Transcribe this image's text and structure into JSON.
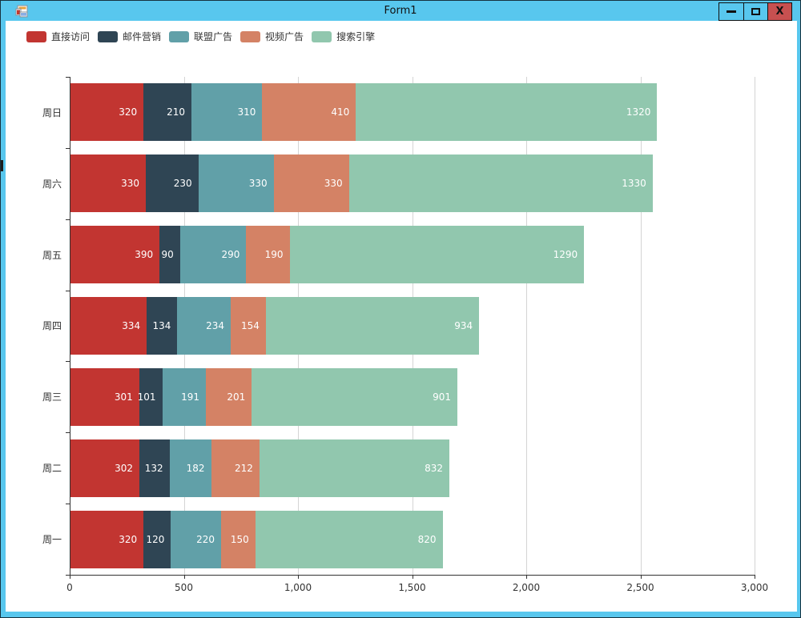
{
  "window": {
    "title": "Form1",
    "buttons": {
      "minimize": "minimize",
      "maximize": "maximize",
      "close": "close",
      "close_glyph": "X"
    }
  },
  "colors": {
    "titlebar": "#58c7ee",
    "close_button": "#c75050",
    "axis": "#333333",
    "grid": "#d4d4d4",
    "tick_label": "#333333",
    "bar_value_label": "#ffffff"
  },
  "chart_data": {
    "type": "bar",
    "orientation": "horizontal",
    "stacked": true,
    "title": "",
    "legend_position": "top-left",
    "grid": true,
    "value_labels": "inside-right",
    "categories": [
      "周日",
      "周六",
      "周五",
      "周四",
      "周三",
      "周二",
      "周一"
    ],
    "categories_order": "top-to-bottom",
    "series": [
      {
        "name": "直接访问",
        "color": "#c23531",
        "values": [
          320,
          330,
          390,
          334,
          301,
          302,
          320
        ]
      },
      {
        "name": "邮件营销",
        "color": "#2f4554",
        "values": [
          210,
          230,
          90,
          134,
          101,
          132,
          120
        ]
      },
      {
        "name": "联盟广告",
        "color": "#61a0a8",
        "values": [
          310,
          330,
          290,
          234,
          191,
          182,
          220
        ]
      },
      {
        "name": "视频广告",
        "color": "#d48265",
        "values": [
          410,
          330,
          190,
          154,
          201,
          212,
          150
        ]
      },
      {
        "name": "搜索引擎",
        "color": "#91c7ae",
        "values": [
          1320,
          1330,
          1290,
          934,
          901,
          832,
          820
        ]
      }
    ],
    "totals": [
      2570,
      2550,
      2250,
      1790,
      1695,
      1660,
      1630
    ],
    "xlim": [
      0,
      3000
    ],
    "xticks": [
      "0",
      "500",
      "1,000",
      "1,500",
      "2,000",
      "2,500",
      "3,000"
    ]
  }
}
